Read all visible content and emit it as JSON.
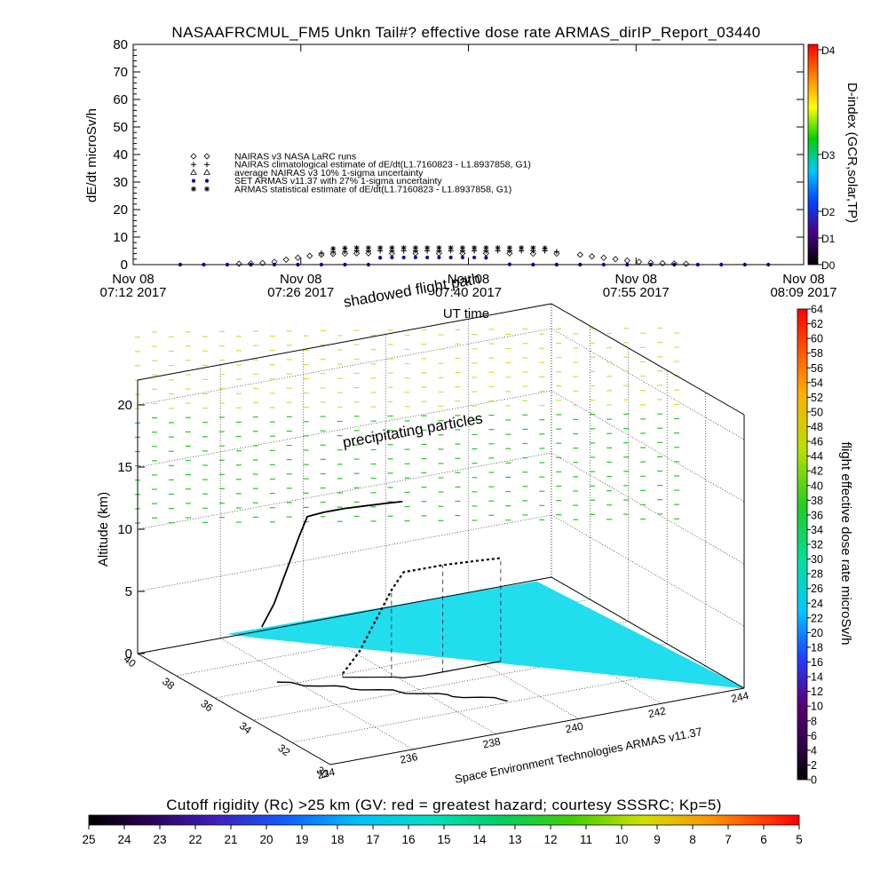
{
  "header": {
    "title": "NASAAFRCMUL_FM5 Unkn Tail#? effective dose rate ARMAS_dirIP_Report_03440"
  },
  "chart_data": [
    {
      "type": "scatter",
      "ylabel": "dE/dt microSv/h",
      "ylim": [
        0,
        80
      ],
      "yticks": [
        "0",
        "10",
        "20",
        "30",
        "40",
        "50",
        "60",
        "70",
        "80"
      ],
      "xlabel": "UT time",
      "xlim": [
        "07:12",
        "08:09"
      ],
      "xticks": [
        {
          "date": "Nov 08",
          "time": "07:12 2017"
        },
        {
          "date": "Nov 08",
          "time": "07:26 2017"
        },
        {
          "date": "Nov 08",
          "time": "07:40 2017"
        },
        {
          "date": "Nov 08",
          "time": "07:55 2017"
        },
        {
          "date": "Nov 08",
          "time": "08:09 2017"
        }
      ],
      "right_axis": {
        "label": "D-index (GCR,solar,TP)",
        "ticks": [
          "D0",
          "D1",
          "D2",
          "D3",
          "D4"
        ],
        "colors": [
          "#000000",
          "#4b0082",
          "#0044ff",
          "#00c8ff",
          "#00d000",
          "#ffff00",
          "#ff8000",
          "#ff0000"
        ]
      },
      "legend": [
        {
          "symbol": "◇",
          "label": "NAIRAS v3 NASA LaRC runs"
        },
        {
          "symbol": "+",
          "label": "NAIRAS climatological estimate of dE/dt(L1.7160823 - L1.8937858, G1)"
        },
        {
          "symbol": "△",
          "label": "average NAIRAS v3 10% 1-sigma uncertainty"
        },
        {
          "symbol": "●",
          "label": "SET ARMAS v11.37 with 27% 1-sigma uncertainty"
        },
        {
          "symbol": "✱",
          "label": "ARMAS statistical estimate of dE/dt(L1.7160823 - L1.8937858, G1)"
        }
      ],
      "legend_colors": {
        "set_armas": "#0000cc"
      },
      "series": [
        {
          "name": "NAIRAS v3 NASA LaRC runs",
          "marker": "diamond",
          "x": [
            "07:21",
            "07:22",
            "07:23",
            "07:24",
            "07:25",
            "07:26",
            "07:27",
            "07:28",
            "07:29",
            "07:30",
            "07:31",
            "07:32",
            "07:34",
            "07:36",
            "07:38",
            "07:40",
            "07:42",
            "07:44",
            "07:46",
            "07:48",
            "07:50",
            "07:51",
            "07:52",
            "07:53",
            "07:54",
            "07:55",
            "07:56",
            "07:57",
            "07:58",
            "07:59"
          ],
          "y": [
            0.3,
            0.4,
            0.6,
            1.0,
            1.8,
            2.5,
            3.2,
            3.6,
            3.9,
            4.0,
            4.1,
            4.1,
            4.1,
            4.1,
            4.1,
            4.1,
            4.1,
            4.1,
            4.0,
            4.0,
            3.6,
            3.0,
            2.5,
            2.0,
            1.5,
            1.0,
            0.7,
            0.5,
            0.4,
            0.3
          ]
        },
        {
          "name": "NAIRAS climatological estimate of dE/dt(L1.7160823 - L1.8937858, G1)",
          "marker": "plus",
          "x": [
            "07:28",
            "07:29",
            "07:30",
            "07:31",
            "07:32",
            "07:33",
            "07:34",
            "07:35",
            "07:36",
            "07:37",
            "07:38",
            "07:39",
            "07:40",
            "07:41",
            "07:42",
            "07:43",
            "07:44",
            "07:45",
            "07:46",
            "07:47",
            "07:48"
          ],
          "y": [
            4.2,
            4.6,
            4.8,
            5.0,
            5.0,
            5.0,
            5.0,
            5.0,
            5.0,
            5.0,
            5.0,
            5.0,
            5.0,
            5.0,
            5.0,
            5.0,
            5.0,
            5.0,
            5.0,
            5.0,
            4.7
          ]
        },
        {
          "name": "SET ARMAS v11.37 with 27% 1-sigma uncertainty",
          "marker": "dot",
          "x": [
            "07:16",
            "07:18",
            "07:20",
            "07:22",
            "07:24",
            "07:26",
            "07:28",
            "07:30",
            "07:32",
            "07:33",
            "07:34",
            "07:35",
            "07:36",
            "07:37",
            "07:38",
            "07:39",
            "07:40",
            "07:41",
            "07:42",
            "07:44",
            "07:46",
            "07:48",
            "07:50",
            "07:52",
            "07:54",
            "07:56",
            "07:58",
            "08:00",
            "08:02",
            "08:04",
            "08:06"
          ],
          "y": [
            0.0,
            0.0,
            0.0,
            0.0,
            0.0,
            0.0,
            0.0,
            0.0,
            0.0,
            2.5,
            2.6,
            2.6,
            2.6,
            2.6,
            2.6,
            2.6,
            2.6,
            2.6,
            2.5,
            0.1,
            0.0,
            0.0,
            0.0,
            0.0,
            0.0,
            0.0,
            0.0,
            0.0,
            0.0,
            0.0,
            0.0
          ]
        },
        {
          "name": "ARMAS statistical estimate of dE/dt(L1.7160823 - L1.8937858, G1)",
          "marker": "asterisk",
          "x": [
            "07:29",
            "07:30",
            "07:31",
            "07:32",
            "07:33",
            "07:34",
            "07:35",
            "07:36",
            "07:37",
            "07:38",
            "07:39",
            "07:40",
            "07:41",
            "07:42",
            "07:43",
            "07:44",
            "07:45",
            "07:46",
            "07:47"
          ],
          "y": [
            5.8,
            6.0,
            6.1,
            6.1,
            6.1,
            6.1,
            6.1,
            6.1,
            6.1,
            6.1,
            6.1,
            6.1,
            6.1,
            6.1,
            6.1,
            6.1,
            6.1,
            6.1,
            6.0
          ]
        }
      ]
    },
    {
      "type": "scatter",
      "zlabel": "Altitude (km)",
      "zticks": [
        "0",
        "5",
        "10",
        "15",
        "20"
      ],
      "zlim": [
        0,
        22
      ],
      "lat_ticks": [
        "30",
        "32",
        "34",
        "36",
        "38",
        "40"
      ],
      "lon_ticks": [
        "234",
        "236",
        "238",
        "240",
        "242",
        "244"
      ],
      "annotations": [
        "shadowed flight path",
        "precipitating particles"
      ],
      "credit": "Space Environment Technologies ARMAS v11.37",
      "colorbar_right": {
        "label": "flight effective dose rate microSv/h",
        "ticks": [
          "0",
          "2",
          "4",
          "6",
          "8",
          "10",
          "12",
          "14",
          "16",
          "18",
          "20",
          "22",
          "24",
          "26",
          "28",
          "30",
          "32",
          "34",
          "36",
          "38",
          "40",
          "42",
          "44",
          "46",
          "48",
          "50",
          "52",
          "54",
          "56",
          "58",
          "60",
          "62",
          "64"
        ]
      },
      "colorbar_bottom": {
        "label": "Cutoff rigidity (Rc) >25 km (GV: red = greatest hazard; courtesy SSSRC; Kp=5)",
        "ticks": [
          "25",
          "24",
          "23",
          "22",
          "21",
          "20",
          "19",
          "18",
          "17",
          "16",
          "15",
          "14",
          "13",
          "12",
          "11",
          "10",
          "9",
          "8",
          "7",
          "6",
          "5"
        ]
      },
      "colors": {
        "ground": "#22ddee",
        "coast": "#000000",
        "particles_high": "#c8e632",
        "particles_low": "#22cc22",
        "flight_path": "#000000"
      },
      "flight_track": {
        "lon": [
          237.0,
          237.3,
          237.6,
          237.9,
          238.1,
          238.5,
          239.0,
          239.5,
          240.0,
          240.4
        ],
        "lat": [
          35.8,
          35.6,
          35.4,
          35.2,
          35.0,
          34.9,
          34.9,
          34.9,
          34.9,
          34.9
        ],
        "alt": [
          0.3,
          2.0,
          4.5,
          7.0,
          8.5,
          8.6,
          8.6,
          8.5,
          8.4,
          8.3
        ]
      }
    }
  ]
}
